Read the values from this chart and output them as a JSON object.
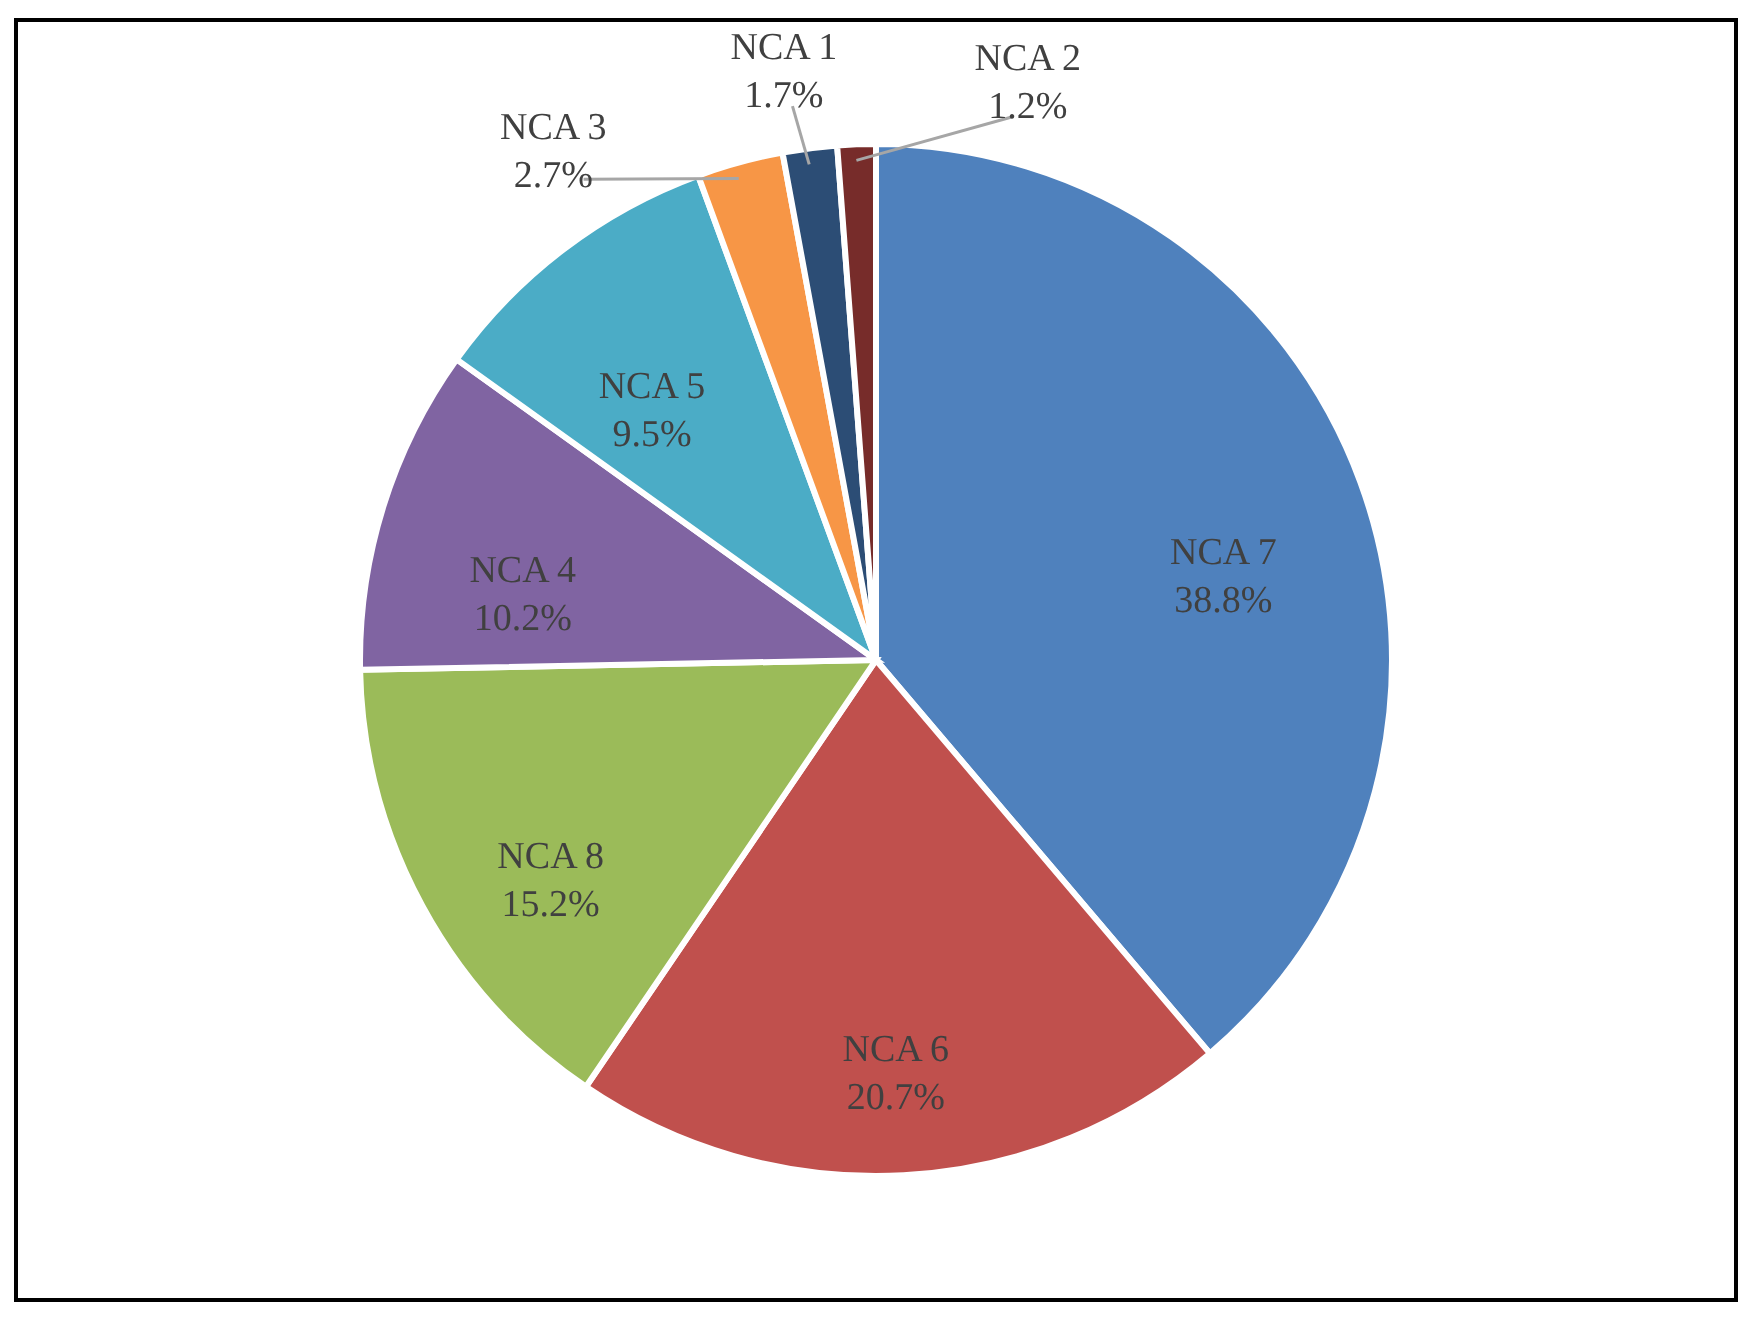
{
  "chart_data": {
    "type": "pie",
    "categories": [
      "NCA 7",
      "NCA 6",
      "NCA 8",
      "NCA 4",
      "NCA 5",
      "NCA 3",
      "NCA 1",
      "NCA 2"
    ],
    "values": [
      38.8,
      20.7,
      15.2,
      10.2,
      9.5,
      2.7,
      1.7,
      1.2
    ],
    "value_labels": [
      "38.8%",
      "20.7%",
      "15.2%",
      "10.2%",
      "9.5%",
      "2.7%",
      "1.7%",
      "1.2%"
    ],
    "colors": [
      "#4f81bd",
      "#c0504d",
      "#9bbb59",
      "#8064a2",
      "#4bacc6",
      "#f79646",
      "#2c4d75",
      "#772c2a"
    ]
  }
}
